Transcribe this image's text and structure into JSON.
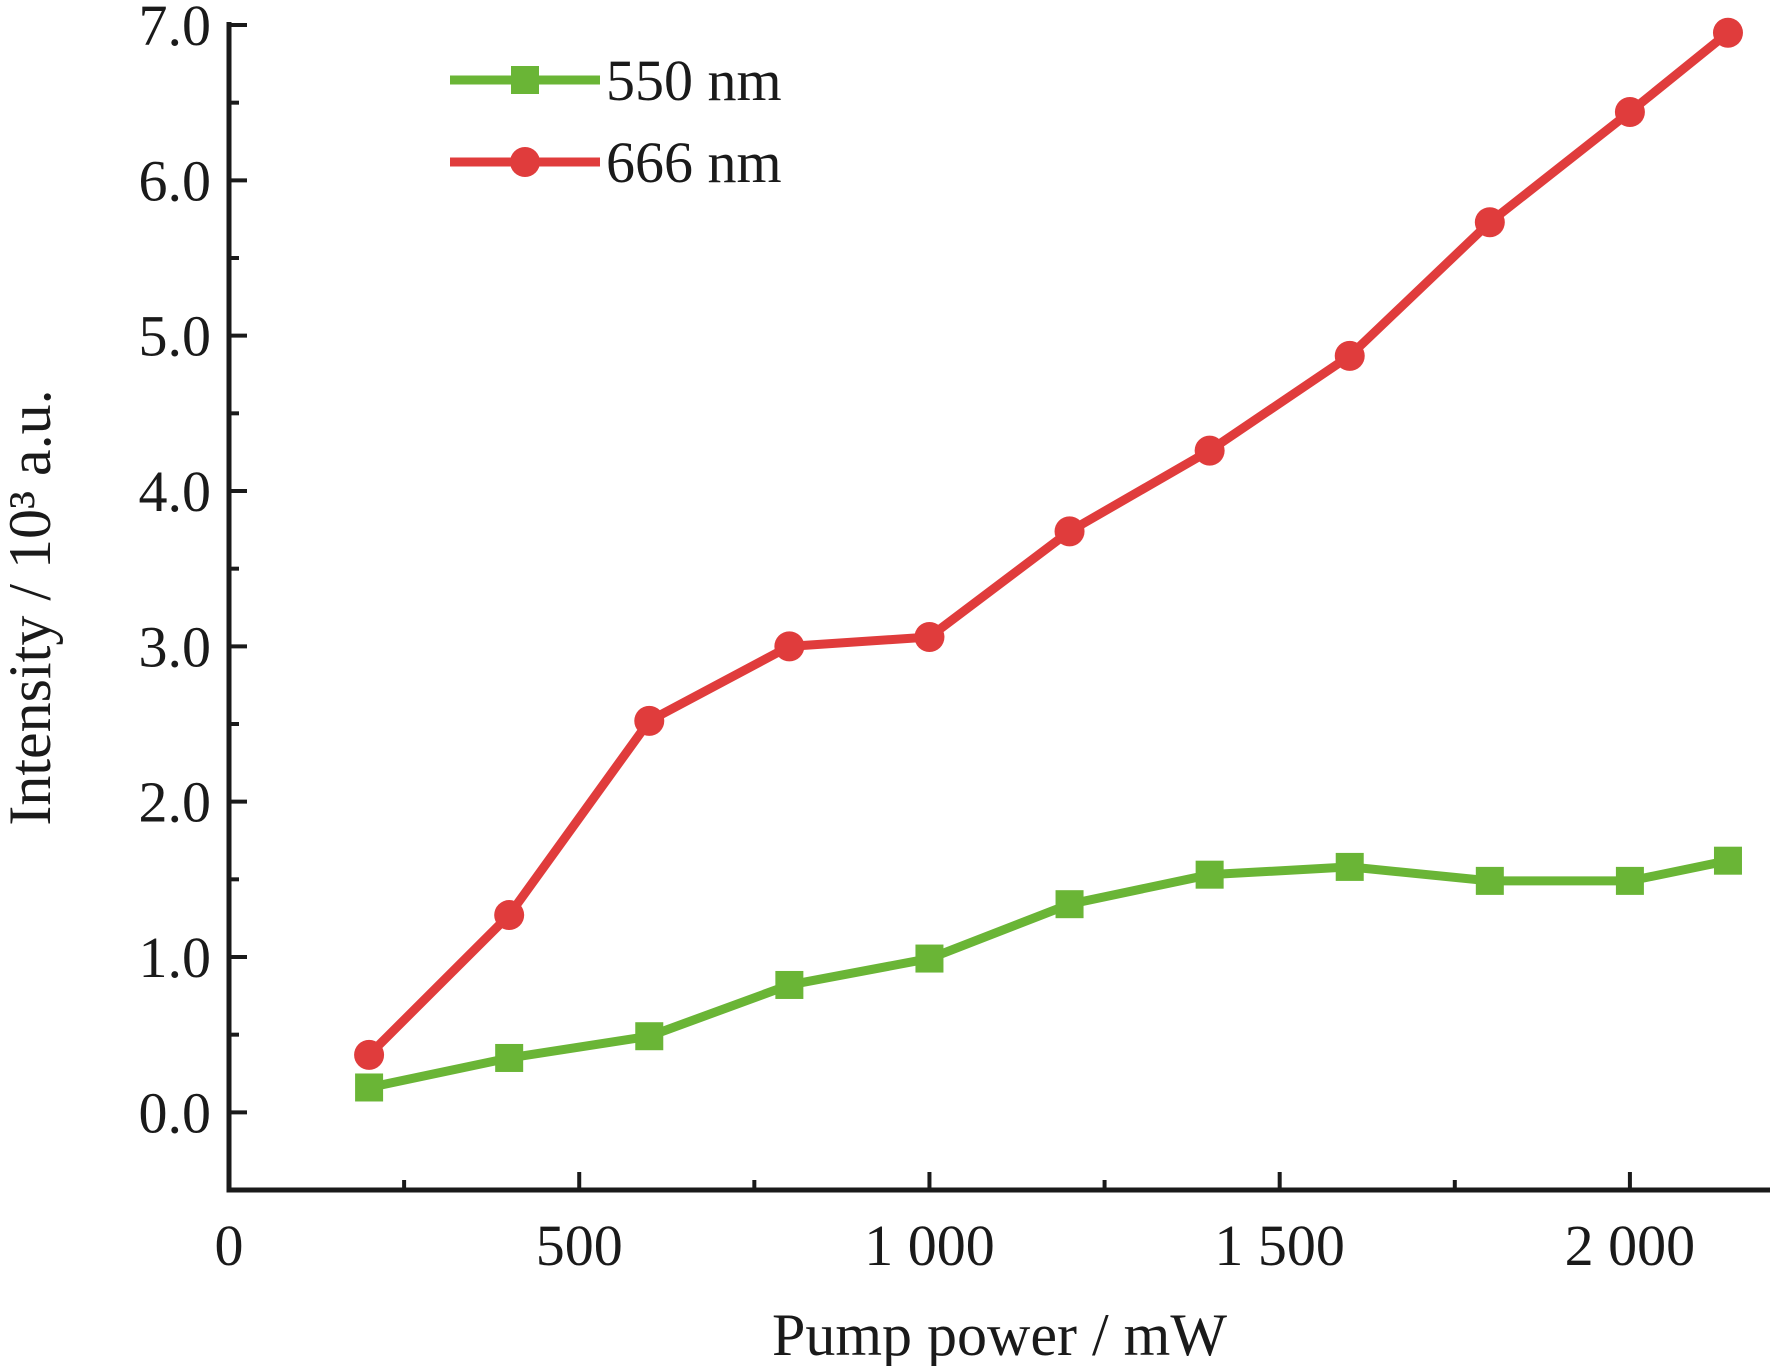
{
  "chart_data": {
    "type": "line",
    "xlabel": "Pump power / mW",
    "ylabel": "Intensity / 10³ a.u.",
    "xlim": [
      0,
      2200
    ],
    "ylim": [
      -0.5,
      7.0
    ],
    "x_ticks": [
      0,
      500,
      1000,
      1500,
      2000
    ],
    "x_tick_labels": [
      "0",
      "500",
      "1 000",
      "1 500",
      "2 000"
    ],
    "y_ticks": [
      0.0,
      1.0,
      2.0,
      3.0,
      4.0,
      5.0,
      6.0,
      7.0
    ],
    "y_tick_labels": [
      "0.0",
      "1.0",
      "2.0",
      "3.0",
      "4.0",
      "5.0",
      "6.0",
      "7.0"
    ],
    "x": [
      200,
      400,
      600,
      800,
      1000,
      1200,
      1400,
      1600,
      1800,
      2000,
      2140
    ],
    "series": [
      {
        "name": "550 nm",
        "marker": "square",
        "color": "#6ab536",
        "values": [
          0.16,
          0.35,
          0.49,
          0.82,
          0.99,
          1.34,
          1.53,
          1.58,
          1.49,
          1.49,
          1.62
        ]
      },
      {
        "name": "666 nm",
        "marker": "circle",
        "color": "#e03c3c",
        "values": [
          0.37,
          1.27,
          2.52,
          3.0,
          3.06,
          3.74,
          4.26,
          4.87,
          5.73,
          6.44,
          6.95
        ]
      }
    ],
    "legend_position": "top-left",
    "grid": false
  }
}
